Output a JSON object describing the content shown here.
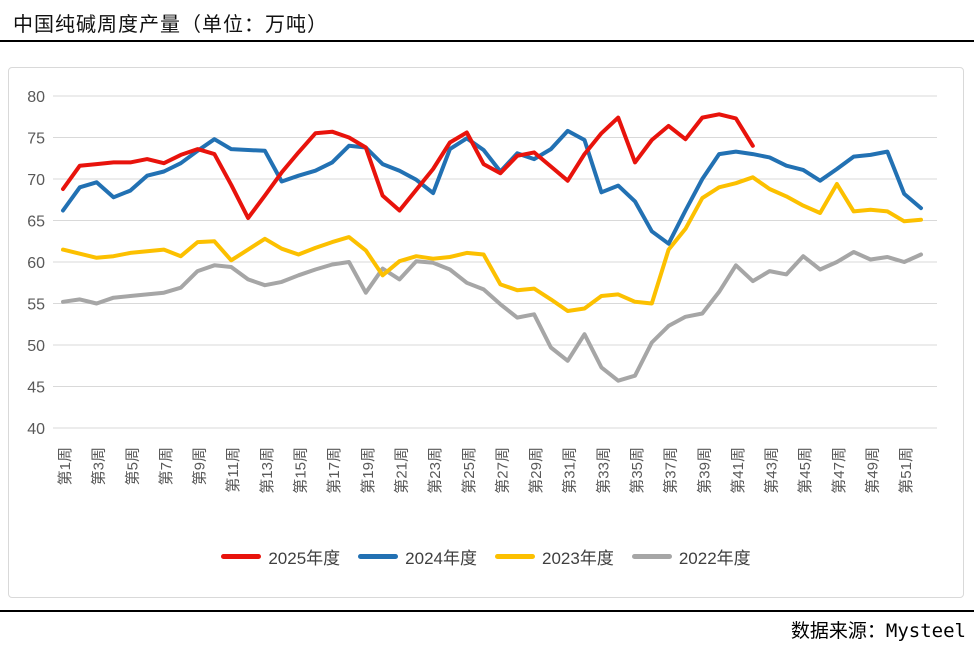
{
  "page": {
    "title": "中国纯碱周度产量（单位：万吨）",
    "source": "数据来源：Mysteel"
  },
  "chart_data": {
    "type": "line",
    "title": "中国纯碱周度产量（单位：万吨）",
    "xlabel": "",
    "ylabel": "",
    "weeks": 52,
    "ylim": [
      40,
      80
    ],
    "y_ticks": [
      40,
      45,
      50,
      55,
      60,
      65,
      70,
      75,
      80
    ],
    "grid": "horizontal",
    "legend_position": "bottom",
    "colors": {
      "grid": "#d9d9d9",
      "tick_label": "#595959",
      "legend_label": "#3f3f3f"
    },
    "x_tick_labels": [
      "第1周",
      "第3周",
      "第5周",
      "第7周",
      "第9周",
      "第11周",
      "第13周",
      "第15周",
      "第17周",
      "第19周",
      "第21周",
      "第23周",
      "第25周",
      "第27周",
      "第29周",
      "第31周",
      "第33周",
      "第35周",
      "第37周",
      "第39周",
      "第41周",
      "第43周",
      "第45周",
      "第47周",
      "第49周",
      "第51周"
    ],
    "series": [
      {
        "name": "2025年度",
        "color": "#e8130c",
        "values": [
          68.8,
          71.6,
          71.8,
          72.0,
          72.0,
          72.4,
          71.9,
          72.9,
          73.6,
          73.0,
          69.3,
          65.3,
          68.0,
          70.8,
          73.2,
          75.5,
          75.7,
          75.0,
          73.8,
          68.0,
          66.2,
          68.7,
          71.2,
          74.4,
          75.6,
          71.8,
          70.7,
          72.8,
          73.2,
          71.5,
          69.8,
          73.0,
          75.5,
          77.4,
          72.0,
          74.7,
          76.4,
          74.8,
          77.4,
          77.8,
          77.3,
          74.0
        ]
      },
      {
        "name": "2024年度",
        "color": "#2271b3",
        "values": [
          66.2,
          69.0,
          69.6,
          67.8,
          68.6,
          70.4,
          70.9,
          71.9,
          73.4,
          74.8,
          73.6,
          73.5,
          73.4,
          69.7,
          70.4,
          71.0,
          72.0,
          74.0,
          73.8,
          71.8,
          71.0,
          69.9,
          68.3,
          73.6,
          74.9,
          73.5,
          70.9,
          73.1,
          72.4,
          73.6,
          75.8,
          74.7,
          68.4,
          69.2,
          67.3,
          63.7,
          62.2,
          66.2,
          70.0,
          73.0,
          73.3,
          73.0,
          72.6,
          71.6,
          71.1,
          69.8,
          71.2,
          72.7,
          72.9,
          73.3,
          68.2,
          66.5
        ]
      },
      {
        "name": "2023年度",
        "color": "#fcc000",
        "values": [
          61.5,
          61.0,
          60.5,
          60.7,
          61.1,
          61.3,
          61.5,
          60.7,
          62.4,
          62.5,
          60.2,
          61.5,
          62.8,
          61.6,
          60.9,
          61.7,
          62.4,
          63.0,
          61.4,
          58.4,
          60.1,
          60.7,
          60.4,
          60.6,
          61.1,
          60.9,
          57.3,
          56.6,
          56.8,
          55.5,
          54.1,
          54.4,
          55.9,
          56.1,
          55.2,
          55.0,
          61.5,
          64.0,
          67.7,
          69.0,
          69.5,
          70.2,
          68.8,
          67.9,
          66.8,
          65.9,
          69.4,
          66.1,
          66.3,
          66.1,
          64.9,
          65.1
        ]
      },
      {
        "name": "2022年度",
        "color": "#a6a6a6",
        "values": [
          55.2,
          55.5,
          55.0,
          55.7,
          55.9,
          56.1,
          56.3,
          56.9,
          58.9,
          59.6,
          59.4,
          57.9,
          57.2,
          57.6,
          58.4,
          59.1,
          59.7,
          60.0,
          56.3,
          59.2,
          57.9,
          60.1,
          59.9,
          59.1,
          57.5,
          56.7,
          54.9,
          53.3,
          53.7,
          49.7,
          48.1,
          51.3,
          47.3,
          45.7,
          46.3,
          50.3,
          52.3,
          53.4,
          53.8,
          56.4,
          59.6,
          57.7,
          58.9,
          58.5,
          60.7,
          59.1,
          60.0,
          61.2,
          60.3,
          60.6,
          60.0,
          60.9
        ]
      }
    ]
  }
}
